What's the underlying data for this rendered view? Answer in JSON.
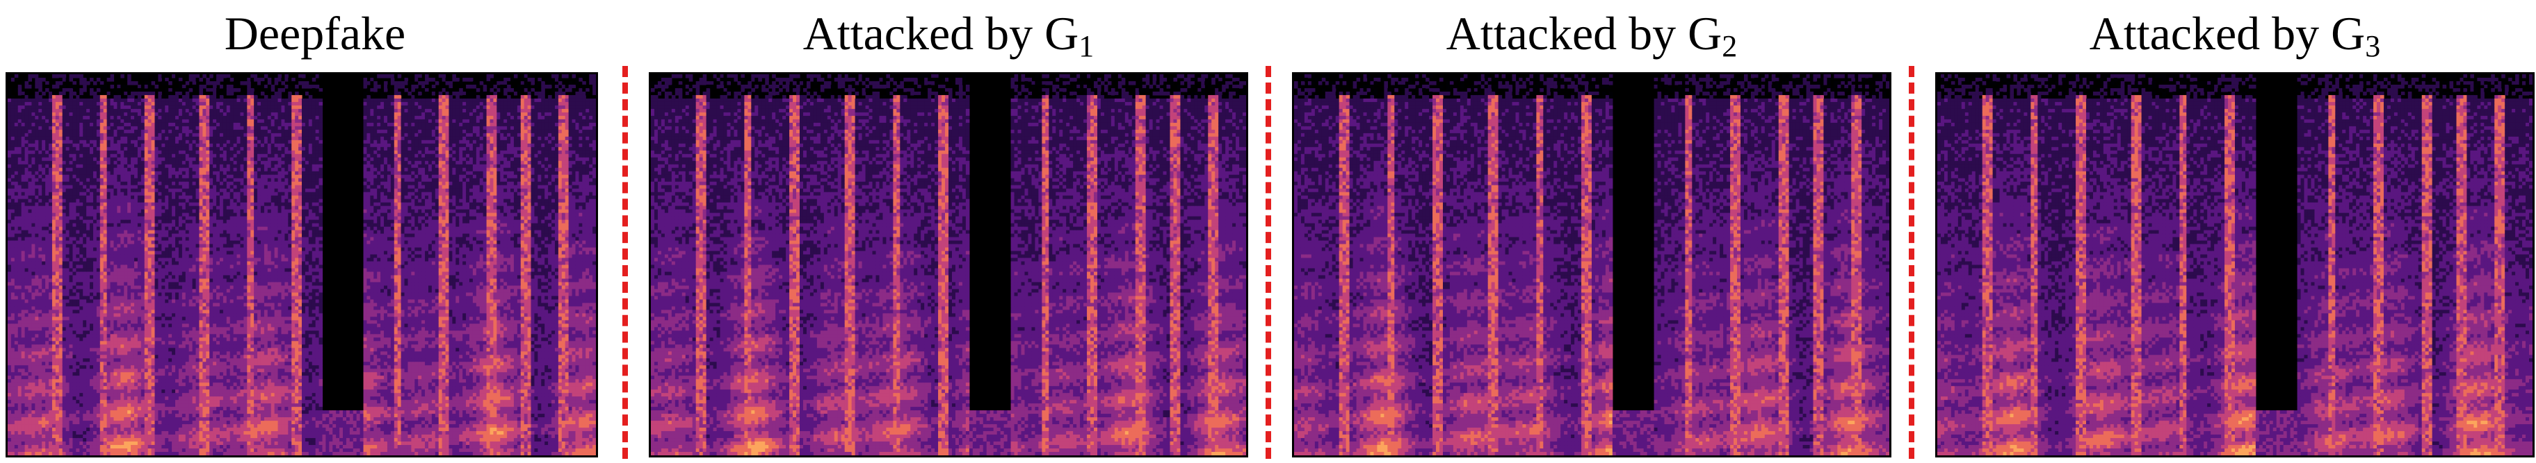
{
  "panels": [
    {
      "title": "Deepfake",
      "sub": "",
      "variant": 0
    },
    {
      "title": "Attacked by G",
      "sub": "1",
      "variant": 1
    },
    {
      "title": "Attacked by G",
      "sub": "2",
      "variant": 2
    },
    {
      "title": "Attacked by G",
      "sub": "3",
      "variant": 3
    }
  ],
  "colors": {
    "divider": "#e41f1f",
    "colormap": [
      "#000004",
      "#2c0b4d",
      "#5a1680",
      "#8c2b86",
      "#c3437a",
      "#ec6c5a",
      "#fca55d",
      "#fde2a2"
    ]
  }
}
